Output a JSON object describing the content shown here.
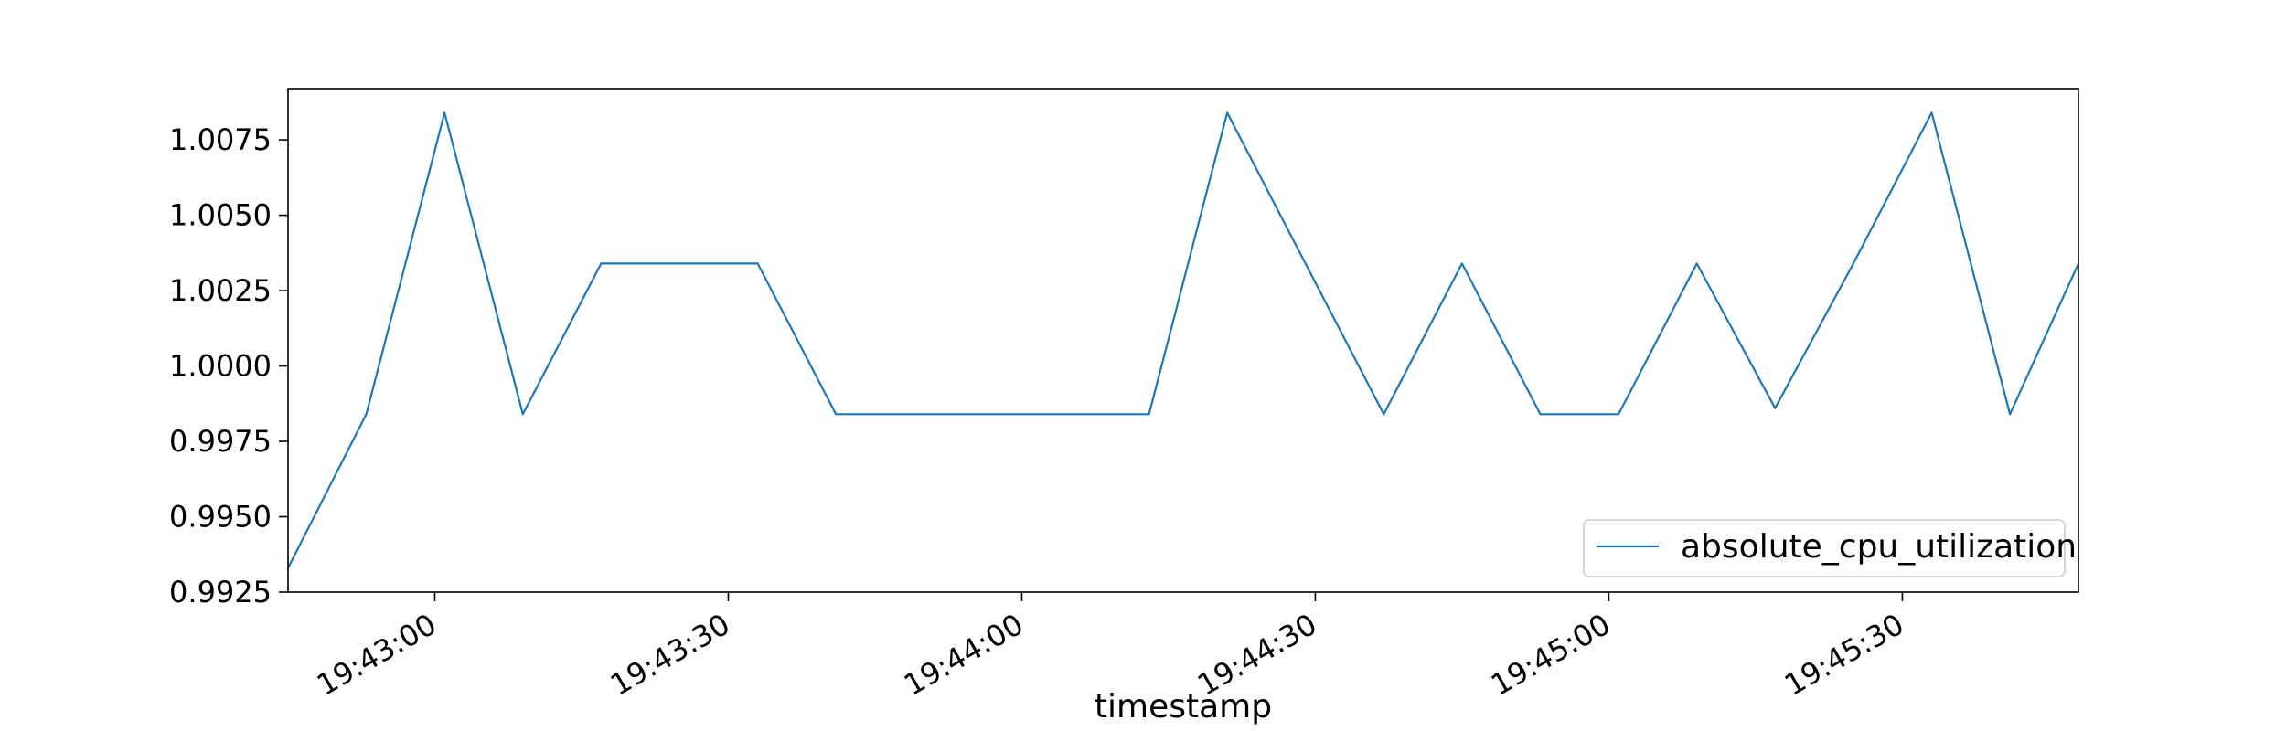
{
  "chart_data": {
    "type": "line",
    "title": "",
    "xlabel": "timestamp",
    "ylabel": "",
    "x_ticks": [
      "19:43:00",
      "19:43:30",
      "19:44:00",
      "19:44:30",
      "19:45:00",
      "19:45:30"
    ],
    "y_ticks": [
      "0.9925",
      "0.9950",
      "0.9975",
      "1.0000",
      "1.0025",
      "1.0050",
      "1.0075"
    ],
    "xlim": [
      "19:42:45",
      "19:45:48"
    ],
    "ylim": [
      0.9925,
      1.0092
    ],
    "grid": false,
    "legend_position": "lower-right",
    "series": [
      {
        "name": "absolute_cpu_utilization",
        "color": "#1f77b4",
        "points": [
          {
            "x": "19:42:45",
            "y": 0.9933
          },
          {
            "x": "19:42:53",
            "y": 0.9984
          },
          {
            "x": "19:43:01",
            "y": 1.0084
          },
          {
            "x": "19:43:09",
            "y": 0.9984
          },
          {
            "x": "19:43:17",
            "y": 1.0034
          },
          {
            "x": "19:43:33",
            "y": 1.0034
          },
          {
            "x": "19:43:41",
            "y": 0.9984
          },
          {
            "x": "19:44:13",
            "y": 0.9984
          },
          {
            "x": "19:44:21",
            "y": 1.0084
          },
          {
            "x": "19:44:29",
            "y": 1.0034
          },
          {
            "x": "19:44:37",
            "y": 0.9984
          },
          {
            "x": "19:44:45",
            "y": 1.0034
          },
          {
            "x": "19:44:53",
            "y": 0.9984
          },
          {
            "x": "19:45:01",
            "y": 0.9984
          },
          {
            "x": "19:45:09",
            "y": 1.0034
          },
          {
            "x": "19:45:17",
            "y": 0.9986
          },
          {
            "x": "19:45:25",
            "y": 1.0034
          },
          {
            "x": "19:45:33",
            "y": 1.0084
          },
          {
            "x": "19:45:41",
            "y": 0.9984
          },
          {
            "x": "19:45:48",
            "y": 1.0034
          }
        ]
      }
    ]
  }
}
